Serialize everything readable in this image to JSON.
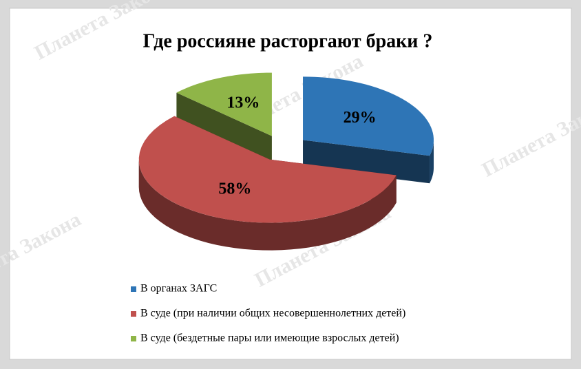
{
  "chart_data": {
    "type": "pie",
    "title": "Где россияне расторгают браки ?",
    "categories": [
      "В органах ЗАГС",
      "В суде (при наличии общих несовершеннолетних детей)",
      "В суде (бездетные пары или имеющие взрослых детей)"
    ],
    "values": [
      29,
      58,
      13
    ],
    "value_labels": [
      "29%",
      "58%",
      "13%"
    ],
    "colors": [
      "#2e75b6",
      "#c0504d",
      "#8fb548"
    ],
    "legend": "bottom-left",
    "watermark": "Планета Закона"
  }
}
